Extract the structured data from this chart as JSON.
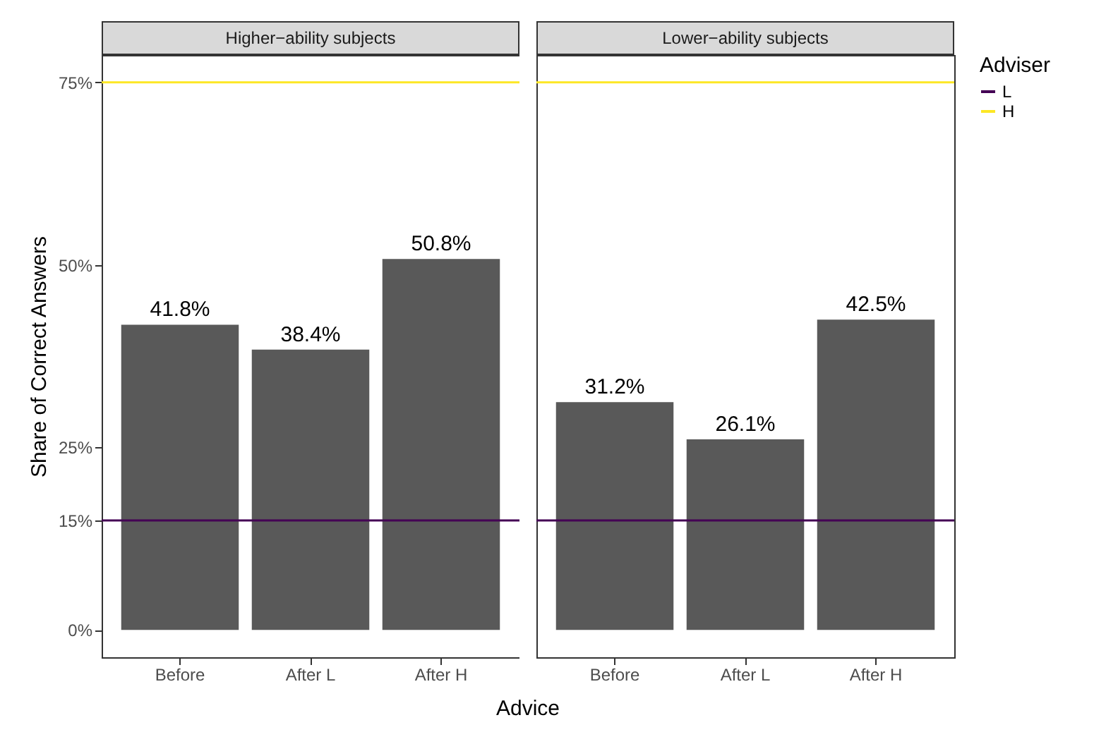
{
  "chart_data": [
    {
      "type": "bar",
      "title": "Higher−ability subjects",
      "xlabel": "Advice",
      "ylabel": "Share of Correct Answers",
      "categories": [
        "Before",
        "After L",
        "After H"
      ],
      "values": [
        41.8,
        38.4,
        50.8
      ],
      "color": "#595959",
      "value_labels": [
        "41.8%",
        "38.4%",
        "50.8%"
      ],
      "ylim": [
        -3.75,
        78.75
      ],
      "yticks": [
        {
          "value": 0,
          "label": "0%"
        },
        {
          "value": 15,
          "label": "15%"
        },
        {
          "value": 25,
          "label": "25%"
        },
        {
          "value": 50,
          "label": "50%"
        },
        {
          "value": 75,
          "label": "75%"
        }
      ],
      "ref_lines": [
        {
          "axis": "y",
          "value": 15,
          "color": "#440154"
        },
        {
          "axis": "y",
          "value": 75,
          "color": "#fde725"
        }
      ]
    },
    {
      "type": "bar",
      "title": "Lower−ability subjects",
      "categories": [
        "Before",
        "After L",
        "After H"
      ],
      "values": [
        31.2,
        26.1,
        42.5
      ],
      "color": "#595959",
      "value_labels": [
        "31.2%",
        "26.1%",
        "42.5%"
      ],
      "ylim": [
        -3.75,
        78.75
      ],
      "tick_labels": "x",
      "legend": "right",
      "legend_title": "Adviser",
      "ref_lines": [
        {
          "axis": "y",
          "value": 15,
          "label": "L",
          "color": "#440154"
        },
        {
          "axis": "y",
          "value": 75,
          "label": "H",
          "color": "#fde725"
        }
      ]
    }
  ]
}
